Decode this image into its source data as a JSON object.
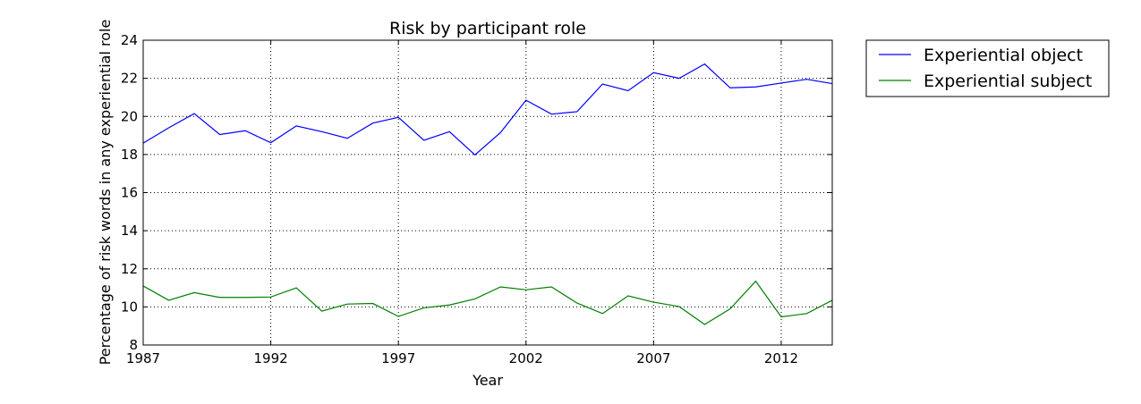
{
  "chart_data": {
    "type": "line",
    "title": "Risk by participant role",
    "xlabel": "Year",
    "ylabel": "Percentage of risk words in any experiential role",
    "xlim": [
      1987,
      2014
    ],
    "ylim": [
      8,
      24
    ],
    "xticks": [
      1987,
      1992,
      1997,
      2002,
      2007,
      2012
    ],
    "yticks": [
      8,
      10,
      12,
      14,
      16,
      18,
      20,
      22,
      24
    ],
    "grid": true,
    "legend_position": "outside-top-right",
    "x": [
      1987,
      1988,
      1989,
      1990,
      1991,
      1992,
      1993,
      1994,
      1995,
      1996,
      1997,
      1998,
      1999,
      2000,
      2001,
      2002,
      2003,
      2004,
      2005,
      2006,
      2007,
      2008,
      2009,
      2010,
      2011,
      2012,
      2013,
      2014
    ],
    "series": [
      {
        "name": "Experiential object",
        "color": "#0000ff",
        "values": [
          18.6,
          19.4,
          20.15,
          19.05,
          19.25,
          18.62,
          19.5,
          19.2,
          18.85,
          19.65,
          19.95,
          18.75,
          19.2,
          17.98,
          19.15,
          20.85,
          20.12,
          20.25,
          21.7,
          21.35,
          22.3,
          22.0,
          22.75,
          21.5,
          21.55,
          21.75,
          21.95,
          21.72
        ]
      },
      {
        "name": "Experiential subject",
        "color": "#008000",
        "values": [
          11.1,
          10.35,
          10.75,
          10.5,
          10.5,
          10.52,
          11.0,
          9.78,
          10.15,
          10.18,
          9.5,
          9.95,
          10.1,
          10.42,
          11.05,
          10.9,
          11.05,
          10.2,
          9.65,
          10.58,
          10.25,
          10.02,
          9.08,
          9.9,
          11.35,
          9.48,
          9.65,
          10.35
        ]
      }
    ]
  }
}
